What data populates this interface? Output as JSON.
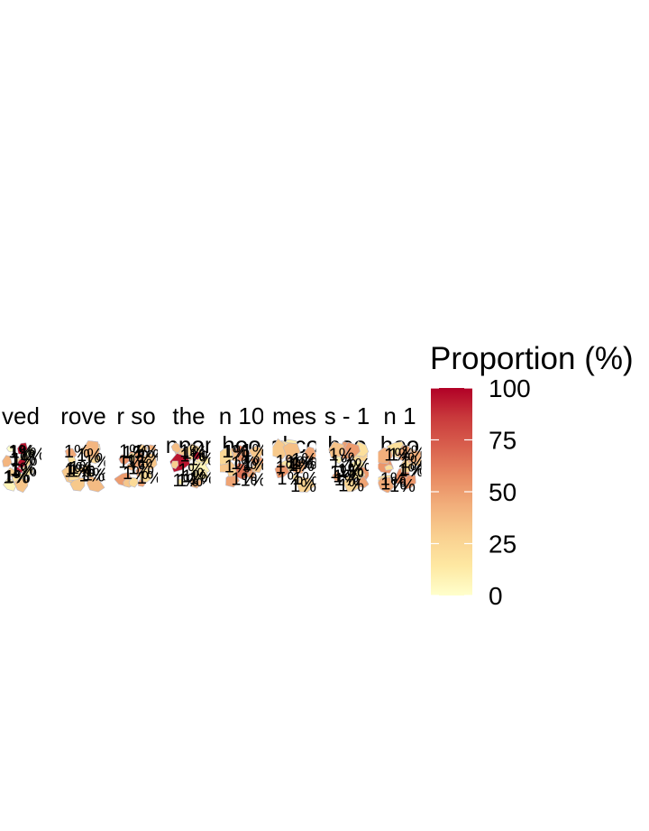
{
  "chart_data": {
    "type": "heatmap",
    "title": "",
    "xlabel": "",
    "ylabel": "",
    "facets": [
      {
        "title": [
          "ved"
        ]
      },
      {
        "title": [
          "rove"
        ]
      },
      {
        "title": [
          "r so"
        ]
      },
      {
        "title": [
          "the",
          "npor"
        ]
      },
      {
        "title": [
          "n 10",
          "hoo"
        ]
      },
      {
        "title": [
          "mes",
          "ol co"
        ]
      },
      {
        "title": [
          "s - 1",
          "hoo"
        ]
      },
      {
        "title": [
          "n 1",
          "hoo"
        ]
      }
    ],
    "legend": {
      "title": "Proportion (%)",
      "position": "right",
      "ticks": [
        0,
        25,
        50,
        75,
        100
      ],
      "tick_labels": [
        "0",
        "25",
        "50",
        "75",
        "100"
      ],
      "range": [
        0,
        100
      ],
      "colors": [
        "#FFFFCC",
        "#FEE8A2",
        "#F9D090",
        "#F2B07C",
        "#E88A62",
        "#D9614E",
        "#C93A3C",
        "#B10026"
      ]
    },
    "label_text": "1%"
  }
}
